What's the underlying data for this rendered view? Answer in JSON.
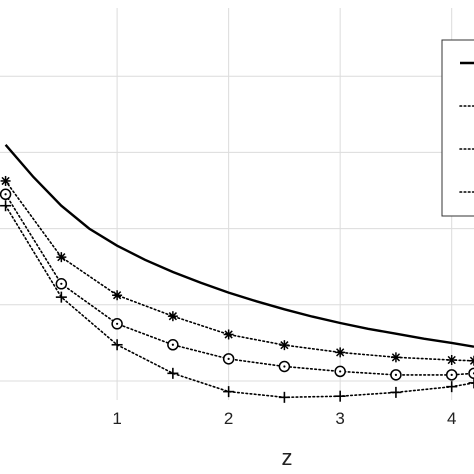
{
  "chart_data": {
    "type": "line",
    "title": "",
    "xlabel": "z",
    "ylabel": "",
    "x_ticks": [
      1,
      2,
      3,
      4
    ],
    "x_tick_labels": [
      "1",
      "2",
      "3",
      "4"
    ],
    "xlim": [
      -0.05,
      4.2
    ],
    "ylim": [
      -0.05,
      1.0
    ],
    "grid": true,
    "legend_position": "top-right",
    "colors": {
      "line": "#000000",
      "grid": "#dcdcdc",
      "axis_text": "#222222"
    },
    "series": [
      {
        "style": "solid",
        "marker": "none",
        "x": [
          0,
          0.25,
          0.5,
          0.75,
          1,
          1.25,
          1.5,
          1.75,
          2,
          2.25,
          2.5,
          2.75,
          3,
          3.25,
          3.5,
          3.75,
          4,
          4.2
        ],
        "values": [
          0.62,
          0.535,
          0.46,
          0.4,
          0.355,
          0.318,
          0.286,
          0.258,
          0.232,
          0.209,
          0.188,
          0.169,
          0.152,
          0.137,
          0.124,
          0.111,
          0.1,
          0.09
        ]
      },
      {
        "style": "dotted",
        "marker": "star",
        "x": [
          0,
          0.5,
          1,
          1.5,
          2,
          2.5,
          3,
          3.5,
          4,
          4.2
        ],
        "values": [
          0.525,
          0.325,
          0.225,
          0.17,
          0.122,
          0.094,
          0.075,
          0.062,
          0.055,
          0.053
        ]
      },
      {
        "style": "dotted",
        "marker": "circle-dot",
        "x": [
          0,
          0.5,
          1,
          1.5,
          2,
          2.5,
          3,
          3.5,
          4,
          4.2
        ],
        "values": [
          0.49,
          0.255,
          0.15,
          0.095,
          0.058,
          0.038,
          0.025,
          0.016,
          0.016,
          0.02
        ]
      },
      {
        "style": "dotted",
        "marker": "plus",
        "x": [
          0,
          0.5,
          1,
          1.5,
          2,
          2.5,
          3,
          3.5,
          4,
          4.2
        ],
        "values": [
          0.46,
          0.22,
          0.095,
          0.02,
          -0.028,
          -0.043,
          -0.04,
          -0.03,
          -0.015,
          -0.005
        ]
      }
    ]
  }
}
